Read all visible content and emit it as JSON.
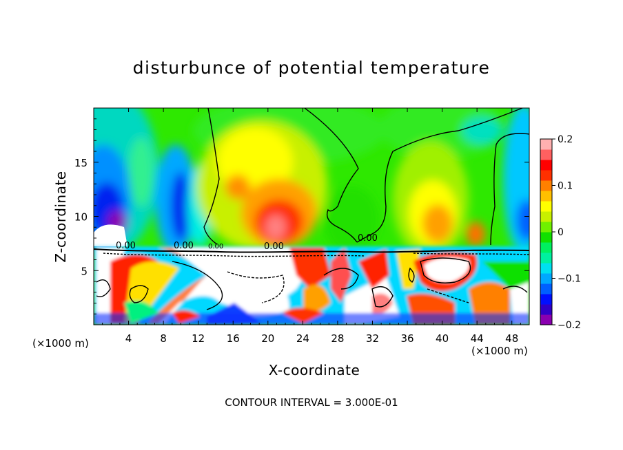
{
  "chart_data": {
    "type": "heatmap",
    "title": "disturbunce of potential temperature",
    "xlabel": "X-coordinate",
    "ylabel": "Z-coordinate",
    "x_unit_left": "(×1000 m)",
    "x_unit_right": "(×1000 m)",
    "xlim": [
      0,
      50
    ],
    "ylim": [
      0,
      20
    ],
    "x_ticks": [
      4,
      8,
      12,
      16,
      20,
      24,
      28,
      32,
      36,
      40,
      44,
      48
    ],
    "y_ticks": [
      5,
      10,
      15
    ],
    "colorbar": {
      "range": [
        -0.2,
        0.2
      ],
      "tick_values": [
        0.2,
        0.1,
        0,
        -0.1,
        -0.2
      ],
      "tick_labels": [
        "0.2",
        "0.1",
        "0",
        "−0.1",
        "−0.2"
      ],
      "colors": [
        "#8a00b0",
        "#3000c8",
        "#0010ff",
        "#0060ff",
        "#00a8ff",
        "#00e0f0",
        "#00f0a0",
        "#00f060",
        "#10e000",
        "#70f000",
        "#c8f000",
        "#ffff00",
        "#ffc000",
        "#ff8000",
        "#ff3000",
        "#ff0000",
        "#ff6060",
        "#ffb0b0"
      ]
    },
    "contour_labels": [
      "0.00",
      "0.00",
      "0.00",
      "0.00",
      "0.00"
    ],
    "contour_interval_text": "CONTOUR INTERVAL = 3.000E-01"
  }
}
